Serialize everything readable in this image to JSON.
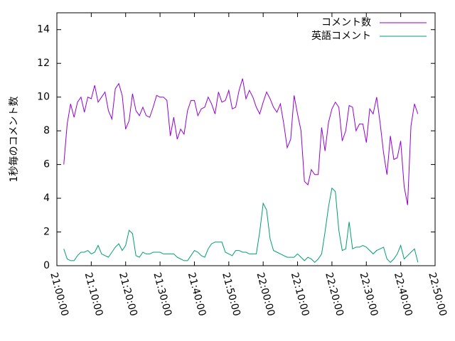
{
  "chart_data": {
    "type": "line",
    "ylabel": "1秒毎のコメント数",
    "xlim": [
      "21:00:00",
      "22:50:00"
    ],
    "xticks": [
      "21:00:00",
      "21:10:00",
      "21:20:00",
      "21:30:00",
      "21:40:00",
      "21:50:00",
      "22:00:00",
      "22:10:00",
      "22:20:00",
      "22:30:00",
      "22:40:00",
      "22:50:00"
    ],
    "ylim": [
      0,
      15
    ],
    "yticks": [
      0,
      2,
      4,
      6,
      8,
      10,
      12,
      14
    ],
    "legend": "top-right",
    "x": [
      "21:02:00",
      "21:03:00",
      "21:04:00",
      "21:05:00",
      "21:06:00",
      "21:07:00",
      "21:08:00",
      "21:09:00",
      "21:10:00",
      "21:11:00",
      "21:12:00",
      "21:13:00",
      "21:14:00",
      "21:15:00",
      "21:16:00",
      "21:17:00",
      "21:18:00",
      "21:19:00",
      "21:20:00",
      "21:21:00",
      "21:22:00",
      "21:23:00",
      "21:24:00",
      "21:25:00",
      "21:26:00",
      "21:27:00",
      "21:28:00",
      "21:29:00",
      "21:30:00",
      "21:31:00",
      "21:32:00",
      "21:33:00",
      "21:34:00",
      "21:35:00",
      "21:36:00",
      "21:37:00",
      "21:38:00",
      "21:39:00",
      "21:40:00",
      "21:41:00",
      "21:42:00",
      "21:43:00",
      "21:44:00",
      "21:45:00",
      "21:46:00",
      "21:47:00",
      "21:48:00",
      "21:49:00",
      "21:50:00",
      "21:51:00",
      "21:52:00",
      "21:53:00",
      "21:54:00",
      "21:55:00",
      "21:56:00",
      "21:57:00",
      "21:58:00",
      "21:59:00",
      "22:00:00",
      "22:01:00",
      "22:02:00",
      "22:03:00",
      "22:04:00",
      "22:05:00",
      "22:06:00",
      "22:07:00",
      "22:08:00",
      "22:09:00",
      "22:10:00",
      "22:11:00",
      "22:12:00",
      "22:13:00",
      "22:14:00",
      "22:15:00",
      "22:16:00",
      "22:17:00",
      "22:18:00",
      "22:19:00",
      "22:20:00",
      "22:21:00",
      "22:22:00",
      "22:23:00",
      "22:24:00",
      "22:25:00",
      "22:26:00",
      "22:27:00",
      "22:28:00",
      "22:29:00",
      "22:30:00",
      "22:31:00",
      "22:32:00",
      "22:33:00",
      "22:34:00",
      "22:35:00",
      "22:36:00",
      "22:37:00",
      "22:38:00",
      "22:39:00",
      "22:40:00",
      "22:41:00",
      "22:42:00",
      "22:43:00",
      "22:44:00",
      "22:45:00"
    ],
    "series": [
      {
        "name": "コメント数",
        "color": "#9400d3",
        "values": [
          6.0,
          8.4,
          9.6,
          8.8,
          9.7,
          10.0,
          9.1,
          10.0,
          9.9,
          10.7,
          9.7,
          10.0,
          10.3,
          9.2,
          8.7,
          10.5,
          10.8,
          10.1,
          8.1,
          8.6,
          10.2,
          9.2,
          8.9,
          9.4,
          8.9,
          8.8,
          9.4,
          10.1,
          10.0,
          10.0,
          9.8,
          7.7,
          8.8,
          7.5,
          8.1,
          7.8,
          9.2,
          9.8,
          9.8,
          8.9,
          9.3,
          9.4,
          10.0,
          9.6,
          9.0,
          10.3,
          9.7,
          9.8,
          10.4,
          9.3,
          9.4,
          10.4,
          11.1,
          9.9,
          10.4,
          10.0,
          9.4,
          9.0,
          9.7,
          10.3,
          9.9,
          9.4,
          9.1,
          9.6,
          8.4,
          7.0,
          7.5,
          10.1,
          9.0,
          8.0,
          5.0,
          4.8,
          5.7,
          5.4,
          5.4,
          8.2,
          6.8,
          8.5,
          9.3,
          9.7,
          9.4,
          7.4,
          8.0,
          9.5,
          9.4,
          8.0,
          8.4,
          8.4,
          7.3,
          9.3,
          9.0,
          10.0,
          8.5,
          6.7,
          5.4,
          7.7,
          6.3,
          6.4,
          7.4,
          4.7,
          3.6,
          8.3,
          9.6,
          9.0
        ]
      },
      {
        "name": "英語コメント",
        "color": "#009e73",
        "values": [
          1.0,
          0.4,
          0.3,
          0.3,
          0.6,
          0.8,
          0.8,
          0.9,
          0.7,
          0.8,
          1.2,
          0.7,
          0.6,
          0.5,
          0.8,
          1.1,
          1.3,
          0.9,
          1.2,
          2.1,
          1.9,
          0.6,
          0.5,
          0.8,
          0.7,
          0.7,
          0.8,
          0.8,
          0.8,
          0.7,
          0.7,
          0.7,
          0.7,
          0.5,
          0.4,
          0.3,
          0.3,
          0.6,
          0.9,
          0.8,
          0.6,
          0.5,
          1.0,
          1.3,
          1.4,
          1.4,
          1.4,
          0.8,
          0.7,
          0.6,
          0.9,
          0.9,
          0.8,
          0.8,
          0.7,
          0.7,
          0.7,
          2.0,
          3.7,
          3.3,
          1.6,
          0.9,
          0.8,
          0.7,
          0.6,
          0.5,
          0.5,
          0.5,
          0.7,
          0.5,
          0.3,
          0.5,
          0.4,
          0.2,
          0.4,
          0.7,
          2.0,
          3.5,
          4.6,
          4.4,
          2.1,
          0.9,
          1.0,
          2.6,
          1.0,
          1.1,
          1.1,
          1.2,
          1.1,
          0.9,
          0.7,
          0.9,
          1.0,
          1.1,
          0.4,
          0.2,
          0.4,
          0.7,
          1.2,
          0.4,
          0.6,
          0.8,
          1.0,
          0.2
        ]
      }
    ]
  }
}
